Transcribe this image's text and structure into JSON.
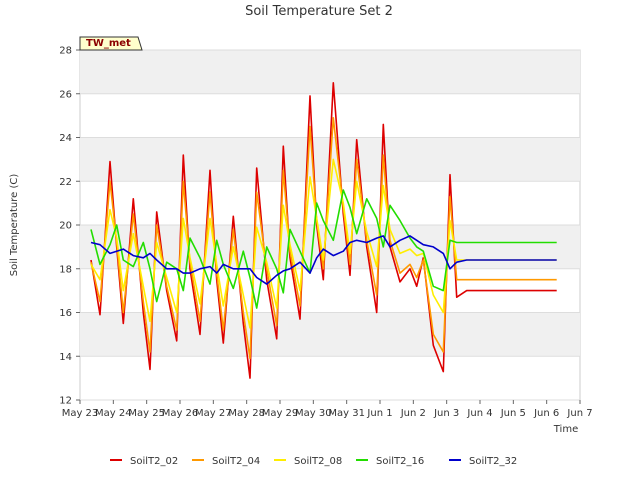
{
  "chart_data": {
    "type": "line",
    "title": "Soil Temperature Set 2",
    "xlabel": "Time",
    "ylabel": "Soil Temperature (C)",
    "ylim": [
      12,
      28
    ],
    "xlim": [
      0,
      15
    ],
    "yticks": [
      12,
      14,
      16,
      18,
      20,
      22,
      24,
      26,
      28
    ],
    "xtick_labels": [
      "May 23",
      "May 24",
      "May 25",
      "May 26",
      "May 27",
      "May 28",
      "May 29",
      "May 30",
      "May 31",
      "Jun 1",
      "Jun 2",
      "Jun 3",
      "Jun 4",
      "Jun 5",
      "Jun 6",
      "Jun 7"
    ],
    "grid": true,
    "legend_placement": "bottom",
    "annotation": "TW_met",
    "x_values": [
      0.33,
      0.6,
      0.9,
      1.1,
      1.3,
      1.6,
      1.9,
      2.1,
      2.3,
      2.6,
      2.9,
      3.1,
      3.3,
      3.6,
      3.9,
      4.1,
      4.3,
      4.6,
      4.9,
      5.1,
      5.3,
      5.6,
      5.9,
      6.1,
      6.3,
      6.6,
      6.9,
      7.1,
      7.3,
      7.6,
      7.9,
      8.1,
      8.3,
      8.6,
      8.9,
      9.1,
      9.3,
      9.6,
      9.9,
      10.1,
      10.3,
      10.6,
      10.9,
      11.1,
      11.3,
      11.6,
      11.9,
      12.1,
      12.3,
      12.6,
      12.9,
      13.1,
      13.3,
      13.6,
      13.9,
      14.1,
      14.3
    ],
    "series": [
      {
        "name": "SoilT2_02",
        "color": "#dd0000",
        "values": [
          18.4,
          15.9,
          22.9,
          19.0,
          15.5,
          21.2,
          16.0,
          13.4,
          20.6,
          17.0,
          14.7,
          23.2,
          18.0,
          15.0,
          22.5,
          17.5,
          14.6,
          20.4,
          15.5,
          13.0,
          22.6,
          17.5,
          14.8,
          23.6,
          18.5,
          15.7,
          25.9,
          20.0,
          17.5,
          26.5,
          20.5,
          17.7,
          23.9,
          19.0,
          16.0,
          24.6,
          19.0,
          17.4,
          18.0,
          17.2,
          18.5,
          14.5,
          13.3,
          22.3,
          16.7,
          17.0,
          17.0,
          17.0,
          17.0,
          17.0,
          17.0,
          17.0,
          17.0,
          17.0,
          17.0,
          17.0,
          17.0
        ]
      },
      {
        "name": "SoilT2_04",
        "color": "#ff9900",
        "values": [
          18.3,
          16.5,
          22.0,
          19.2,
          16.0,
          20.5,
          16.5,
          14.2,
          20.0,
          17.2,
          15.2,
          22.0,
          18.3,
          15.6,
          21.5,
          17.8,
          15.2,
          19.8,
          16.0,
          13.9,
          21.5,
          18.0,
          15.4,
          22.5,
          18.8,
          16.3,
          24.5,
          20.2,
          18.0,
          24.9,
          20.8,
          18.2,
          23.0,
          19.3,
          16.8,
          23.2,
          19.3,
          17.8,
          18.2,
          17.6,
          18.4,
          15.0,
          14.2,
          21.3,
          17.5,
          17.5,
          17.5,
          17.5,
          17.5,
          17.5,
          17.5,
          17.5,
          17.5,
          17.5,
          17.5,
          17.5,
          17.5
        ]
      },
      {
        "name": "SoilT2_08",
        "color": "#ffee00",
        "values": [
          18.2,
          17.5,
          20.7,
          19.4,
          17.0,
          19.6,
          17.2,
          15.6,
          19.2,
          17.6,
          16.0,
          20.3,
          18.5,
          16.4,
          20.3,
          18.2,
          16.3,
          19.0,
          16.8,
          15.3,
          19.9,
          18.3,
          16.2,
          20.9,
          19.1,
          17.0,
          22.2,
          20.3,
          18.4,
          23.0,
          21.0,
          18.7,
          22.0,
          19.7,
          18.1,
          21.8,
          19.8,
          18.7,
          18.9,
          18.6,
          18.7,
          16.8,
          16.0,
          20.2,
          18.4,
          18.4,
          18.4,
          18.4,
          18.4,
          18.4,
          18.4,
          18.4,
          18.4,
          18.4,
          18.4,
          18.4,
          18.4
        ]
      },
      {
        "name": "SoilT2_16",
        "color": "#22dd00",
        "values": [
          19.8,
          18.2,
          19.1,
          20.0,
          18.4,
          18.1,
          19.2,
          18.0,
          16.5,
          18.3,
          18.0,
          17.0,
          19.4,
          18.5,
          17.3,
          19.3,
          18.2,
          17.1,
          18.8,
          17.6,
          16.2,
          19.0,
          18.0,
          16.9,
          19.8,
          18.8,
          17.8,
          21.0,
          20.2,
          19.3,
          21.6,
          20.8,
          19.6,
          21.2,
          20.3,
          19.0,
          20.9,
          20.2,
          19.4,
          19.0,
          18.8,
          17.2,
          17.0,
          19.3,
          19.2,
          19.2,
          19.2,
          19.2,
          19.2,
          19.2,
          19.2,
          19.2,
          19.2,
          19.2,
          19.2,
          19.2,
          19.2
        ]
      },
      {
        "name": "SoilT2_32",
        "color": "#0000cc",
        "values": [
          19.2,
          19.1,
          18.7,
          18.8,
          18.9,
          18.6,
          18.5,
          18.7,
          18.4,
          18.0,
          18.0,
          17.8,
          17.8,
          18.0,
          18.1,
          17.8,
          18.2,
          18.0,
          18.0,
          18.0,
          17.6,
          17.3,
          17.7,
          17.9,
          18.0,
          18.3,
          17.8,
          18.5,
          18.9,
          18.6,
          18.8,
          19.2,
          19.3,
          19.2,
          19.4,
          19.5,
          19.0,
          19.3,
          19.5,
          19.3,
          19.1,
          19.0,
          18.7,
          18.0,
          18.3,
          18.4,
          18.4,
          18.4,
          18.4,
          18.4,
          18.4,
          18.4,
          18.4,
          18.4,
          18.4,
          18.4,
          18.4
        ]
      }
    ]
  }
}
